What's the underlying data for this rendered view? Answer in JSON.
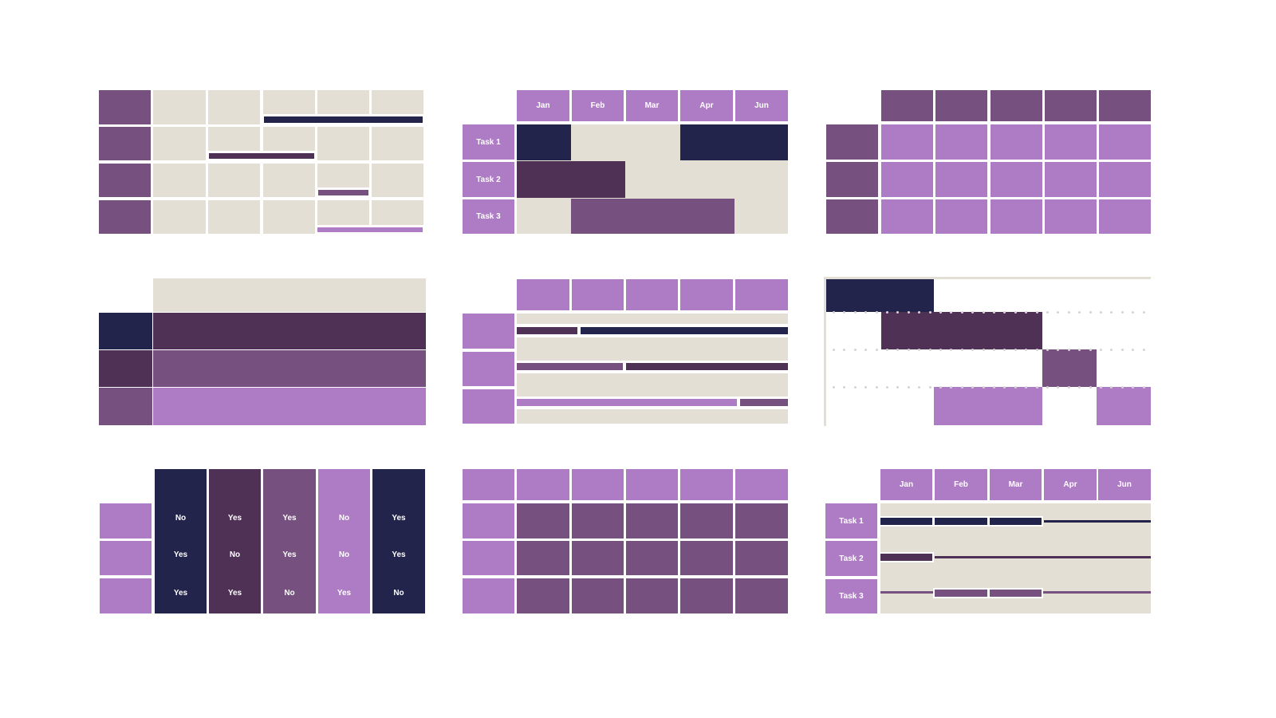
{
  "colors": {
    "light_purple": "#ae7cc4",
    "mid_purple": "#76507f",
    "dark_purple": "#4f3156",
    "navy": "#23244c",
    "beige": "#e3dfd4",
    "dot_gray": "#d6d3d3"
  },
  "gantt_a": {
    "months": [
      "Jan",
      "Feb",
      "Mar",
      "Apr",
      "Jun"
    ],
    "tasks": [
      "Task 1",
      "Task 2",
      "Task 3"
    ]
  },
  "gantt_b": {
    "months": [
      "Jan",
      "Feb",
      "Mar",
      "Apr",
      "Jun"
    ],
    "tasks": [
      "Task 1",
      "Task 2",
      "Task 3"
    ]
  },
  "yes_no_table": {
    "columns": [
      [
        "No",
        "Yes",
        "Yes"
      ],
      [
        "Yes",
        "No",
        "Yes"
      ],
      [
        "Yes",
        "Yes",
        "No"
      ],
      [
        "No",
        "No",
        "Yes"
      ],
      [
        "Yes",
        "Yes",
        "No"
      ]
    ]
  }
}
